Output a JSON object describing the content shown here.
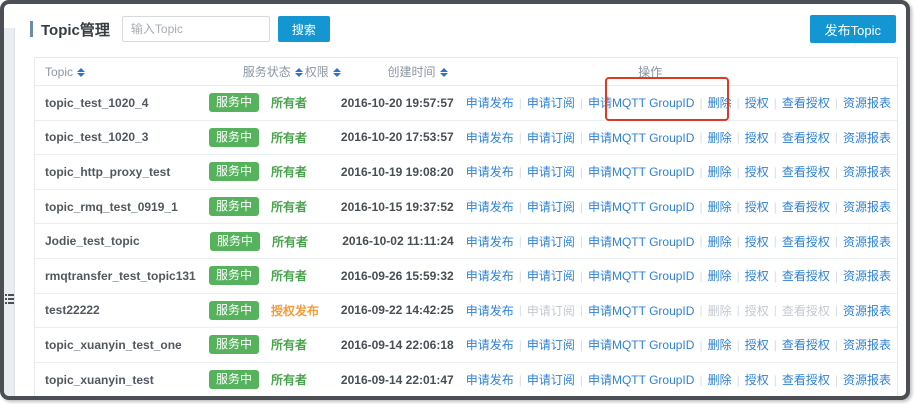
{
  "page": {
    "title": "Topic管理",
    "search_placeholder": "输入Topic",
    "search_button": "搜索",
    "publish_button": "发布Topic"
  },
  "colors": {
    "accent_blue": "#1496d2",
    "link_blue": "#2f82d8",
    "status_green": "#56b25c",
    "owner_green": "#4aa34e",
    "grant_orange": "#f09d3c",
    "highlight_red": "#dd3a26"
  },
  "table": {
    "columns": [
      {
        "label": "Topic",
        "sortable": true
      },
      {
        "label": "服务状态",
        "sortable": true
      },
      {
        "label": "权限",
        "sortable": true
      },
      {
        "label": "创建时间",
        "sortable": true
      },
      {
        "label": "操作",
        "sortable": false
      }
    ],
    "actions": [
      {
        "key": "apply-publish",
        "label": "申请发布"
      },
      {
        "key": "apply-subscribe",
        "label": "申请订阅"
      },
      {
        "key": "apply-mqtt-groupid",
        "label": "申请MQTT GroupID"
      },
      {
        "key": "delete",
        "label": "删除"
      },
      {
        "key": "authorize",
        "label": "授权"
      },
      {
        "key": "view-authorization",
        "label": "查看授权"
      },
      {
        "key": "resource-report",
        "label": "资源报表"
      }
    ],
    "rows": [
      {
        "topic": "topic_test_1020_4",
        "status": "服务中",
        "perm": "所有者",
        "perm_type": "owner",
        "time": "2016-10-20 19:57:57",
        "disabled_actions": []
      },
      {
        "topic": "topic_test_1020_3",
        "status": "服务中",
        "perm": "所有者",
        "perm_type": "owner",
        "time": "2016-10-20 17:53:57",
        "disabled_actions": []
      },
      {
        "topic": "topic_http_proxy_test",
        "status": "服务中",
        "perm": "所有者",
        "perm_type": "owner",
        "time": "2016-10-19 19:08:20",
        "disabled_actions": []
      },
      {
        "topic": "topic_rmq_test_0919_1",
        "status": "服务中",
        "perm": "所有者",
        "perm_type": "owner",
        "time": "2016-10-15 19:37:52",
        "disabled_actions": []
      },
      {
        "topic": "Jodie_test_topic",
        "status": "服务中",
        "perm": "所有者",
        "perm_type": "owner",
        "time": "2016-10-02 11:11:24",
        "disabled_actions": []
      },
      {
        "topic": "rmqtransfer_test_topic131",
        "status": "服务中",
        "perm": "所有者",
        "perm_type": "owner",
        "time": "2016-09-26 15:59:32",
        "disabled_actions": []
      },
      {
        "topic": "test22222",
        "status": "服务中",
        "perm": "授权发布",
        "perm_type": "grant",
        "time": "2016-09-22 14:42:25",
        "disabled_actions": [
          "apply-subscribe",
          "delete",
          "authorize",
          "view-authorization"
        ]
      },
      {
        "topic": "topic_xuanyin_test_one",
        "status": "服务中",
        "perm": "所有者",
        "perm_type": "owner",
        "time": "2016-09-14 22:06:18",
        "disabled_actions": []
      },
      {
        "topic": "topic_xuanyin_test",
        "status": "服务中",
        "perm": "所有者",
        "perm_type": "owner",
        "time": "2016-09-14 22:01:47",
        "disabled_actions": []
      }
    ],
    "highlight": {
      "row_index": 0,
      "action_key": "apply-mqtt-groupid"
    }
  }
}
